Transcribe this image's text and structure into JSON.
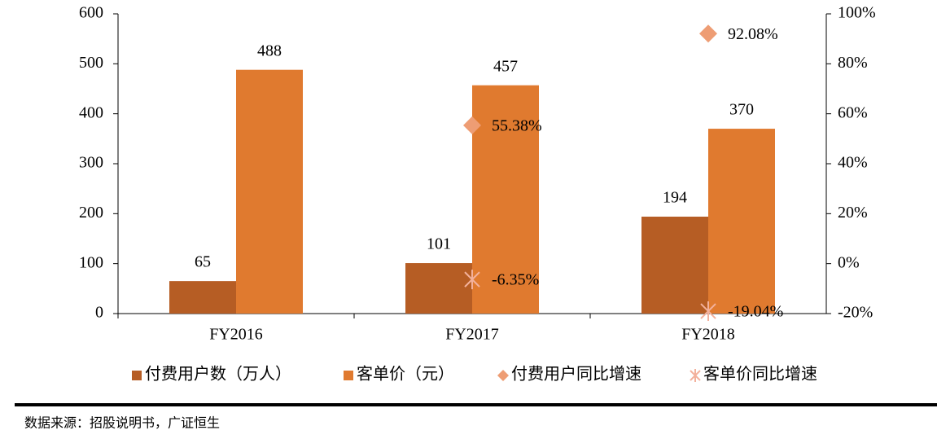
{
  "chart_data": {
    "type": "bar",
    "categories": [
      "FY2016",
      "FY2017",
      "FY2018"
    ],
    "series": [
      {
        "name": "付费用户数（万人）",
        "type": "bar",
        "color": "#b65d24",
        "values": [
          65,
          101,
          194
        ]
      },
      {
        "name": "客单价（元）",
        "type": "bar",
        "color": "#e07a2f",
        "values": [
          488,
          457,
          370
        ]
      },
      {
        "name": "付费用户同比增速",
        "type": "scatter",
        "marker": "diamond",
        "axis": "y2",
        "color": "#ee9d74",
        "values": [
          null,
          55.38,
          92.08
        ],
        "value_labels": [
          null,
          "55.38%",
          "92.08%"
        ]
      },
      {
        "name": "客单价同比增速",
        "type": "scatter",
        "marker": "asterisk",
        "axis": "y2",
        "color": "#f3b19c",
        "values": [
          null,
          -6.35,
          -19.04
        ],
        "value_labels": [
          null,
          "-6.35%",
          "-19.04%"
        ]
      }
    ],
    "ylim": [
      0,
      600
    ],
    "yticks": [
      0,
      100,
      200,
      300,
      400,
      500,
      600
    ],
    "y2lim": [
      -20,
      100
    ],
    "y2ticks": [
      {
        "value": -20,
        "label": "-20%"
      },
      {
        "value": 0,
        "label": "0%"
      },
      {
        "value": 20,
        "label": "20%"
      },
      {
        "value": 40,
        "label": "40%"
      },
      {
        "value": 60,
        "label": "60%"
      },
      {
        "value": 80,
        "label": "80%"
      },
      {
        "value": 100,
        "label": "100%"
      }
    ],
    "source": "数据来源：招股说明书，广证恒生"
  }
}
